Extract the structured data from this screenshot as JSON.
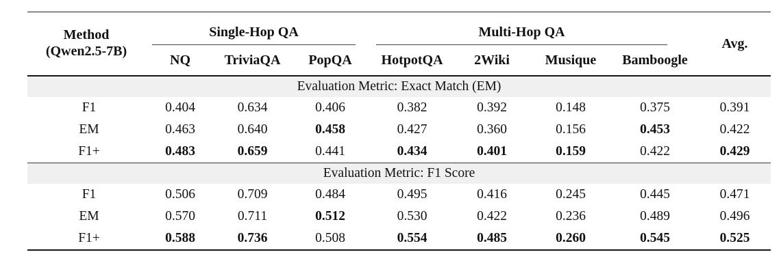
{
  "table": {
    "method_header": {
      "line1": "Method",
      "line2": "(Qwen2.5-7B)"
    },
    "group_headers": {
      "single_hop": "Single-Hop QA",
      "multi_hop": "Multi-Hop QA"
    },
    "avg_header": "Avg.",
    "columns": [
      "NQ",
      "TriviaQA",
      "PopQA",
      "HotpotQA",
      "2Wiki",
      "Musique",
      "Bamboogle"
    ],
    "colors": {
      "band_background": "#f0f0f0",
      "text": "#111111",
      "rule": "#141414"
    },
    "sections": [
      {
        "title": "Evaluation Metric: Exact Match (EM)",
        "rows": [
          {
            "method": "F1",
            "values": [
              "0.404",
              "0.634",
              "0.406",
              "0.382",
              "0.392",
              "0.148",
              "0.375",
              "0.391"
            ],
            "bold": [
              false,
              false,
              false,
              false,
              false,
              false,
              false,
              false
            ]
          },
          {
            "method": "EM",
            "values": [
              "0.463",
              "0.640",
              "0.458",
              "0.427",
              "0.360",
              "0.156",
              "0.453",
              "0.422"
            ],
            "bold": [
              false,
              false,
              true,
              false,
              false,
              false,
              true,
              false
            ]
          },
          {
            "method": "F1+",
            "values": [
              "0.483",
              "0.659",
              "0.441",
              "0.434",
              "0.401",
              "0.159",
              "0.422",
              "0.429"
            ],
            "bold": [
              true,
              true,
              false,
              true,
              true,
              true,
              false,
              true
            ]
          }
        ]
      },
      {
        "title": "Evaluation Metric: F1 Score",
        "rows": [
          {
            "method": "F1",
            "values": [
              "0.506",
              "0.709",
              "0.484",
              "0.495",
              "0.416",
              "0.245",
              "0.445",
              "0.471"
            ],
            "bold": [
              false,
              false,
              false,
              false,
              false,
              false,
              false,
              false
            ]
          },
          {
            "method": "EM",
            "values": [
              "0.570",
              "0.711",
              "0.512",
              "0.530",
              "0.422",
              "0.236",
              "0.489",
              "0.496"
            ],
            "bold": [
              false,
              false,
              true,
              false,
              false,
              false,
              false,
              false
            ]
          },
          {
            "method": "F1+",
            "values": [
              "0.588",
              "0.736",
              "0.508",
              "0.554",
              "0.485",
              "0.260",
              "0.545",
              "0.525"
            ],
            "bold": [
              true,
              true,
              false,
              true,
              true,
              true,
              true,
              true
            ]
          }
        ]
      }
    ]
  }
}
